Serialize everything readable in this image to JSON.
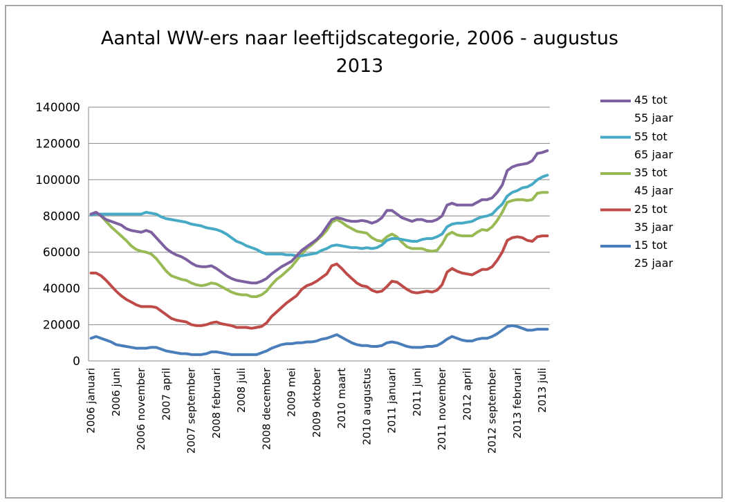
{
  "chart_data": {
    "type": "line",
    "title": "Aantal WW-ers naar leeftijdscategorie, 2006 - augustus 2013",
    "categories": [
      "2006 januari",
      null,
      null,
      null,
      null,
      "2006 juni",
      null,
      null,
      null,
      null,
      "2006 november",
      null,
      null,
      null,
      null,
      "2007 april",
      null,
      null,
      null,
      null,
      "2007 september",
      null,
      null,
      null,
      null,
      "2008 februari",
      null,
      null,
      null,
      null,
      "2008 juli",
      null,
      null,
      null,
      null,
      "2008 december",
      null,
      null,
      null,
      null,
      "2009 mei",
      null,
      null,
      null,
      null,
      "2009 oktober",
      null,
      null,
      null,
      null,
      "2010 maart",
      null,
      null,
      null,
      null,
      "2010 augustus",
      null,
      null,
      null,
      null,
      "2011 januari",
      null,
      null,
      null,
      null,
      "2011 juni",
      null,
      null,
      null,
      null,
      "2011 november",
      null,
      null,
      null,
      null,
      "2012 april",
      null,
      null,
      null,
      null,
      "2012 september",
      null,
      null,
      null,
      null,
      "2013 februari",
      null,
      null,
      null,
      null,
      "2013 juli",
      null
    ],
    "series": [
      {
        "name": "45 tot 55 jaar",
        "color": "#7d60a0",
        "values": [
          81000,
          82000,
          80000,
          78000,
          77000,
          76000,
          75000,
          73000,
          72000,
          71500,
          71000,
          72000,
          71000,
          68000,
          65000,
          62000,
          60000,
          58500,
          57500,
          56000,
          54000,
          52500,
          52000,
          52000,
          52500,
          51000,
          49000,
          47000,
          45500,
          44500,
          44000,
          43500,
          43000,
          43000,
          44000,
          45500,
          48000,
          50000,
          52000,
          53500,
          55000,
          58000,
          61000,
          63000,
          65000,
          67000,
          70000,
          74000,
          78000,
          79000,
          78500,
          77500,
          77000,
          77000,
          77500,
          77000,
          76000,
          77000,
          79000,
          83000,
          83000,
          81000,
          79000,
          78000,
          77000,
          78000,
          78000,
          77000,
          77000,
          78000,
          80000,
          86000,
          87000,
          86000,
          86000,
          86000,
          86000,
          87500,
          89000,
          89000,
          90000,
          93000,
          97000,
          105000,
          107000,
          108000,
          108500,
          109000,
          110500,
          114500,
          115000,
          116000
        ]
      },
      {
        "name": "55 tot 65 jaar",
        "color": "#46aac5",
        "values": [
          80500,
          81000,
          81000,
          81000,
          81000,
          81000,
          81000,
          81000,
          81000,
          81000,
          81000,
          82000,
          81500,
          81000,
          79500,
          78500,
          78000,
          77500,
          77000,
          76500,
          75500,
          75000,
          74500,
          73500,
          73000,
          72500,
          71500,
          70000,
          68000,
          66000,
          65000,
          63500,
          62500,
          61500,
          60000,
          59000,
          59000,
          59000,
          59000,
          58500,
          58500,
          58000,
          58000,
          58500,
          59000,
          59500,
          61000,
          62000,
          63500,
          64000,
          63500,
          63000,
          62500,
          62500,
          62000,
          62500,
          62000,
          62500,
          64000,
          66500,
          67500,
          67500,
          67000,
          66500,
          66000,
          66000,
          67000,
          67500,
          67500,
          68500,
          70000,
          74000,
          75500,
          76000,
          76000,
          76500,
          77000,
          78500,
          79500,
          80000,
          81000,
          84000,
          86500,
          91000,
          93000,
          94000,
          95500,
          96000,
          97500,
          100000,
          101500,
          102500
        ]
      },
      {
        "name": "35 tot 45 jaar",
        "color": "#98b954",
        "values": [
          81000,
          82000,
          80000,
          77000,
          74000,
          71500,
          69000,
          66500,
          63500,
          61500,
          60500,
          60000,
          59000,
          56500,
          53000,
          49500,
          47000,
          46000,
          45000,
          44500,
          43000,
          42000,
          41500,
          42000,
          43000,
          42500,
          41000,
          39500,
          38000,
          37000,
          36500,
          36500,
          35500,
          35500,
          36500,
          38500,
          42000,
          45000,
          47000,
          49500,
          52000,
          55500,
          59000,
          62000,
          64000,
          66500,
          69000,
          72000,
          76500,
          78000,
          76500,
          74500,
          73000,
          71500,
          71000,
          70500,
          68000,
          66500,
          66000,
          68500,
          70000,
          68500,
          65500,
          63000,
          62000,
          62000,
          62000,
          61000,
          60500,
          61000,
          64500,
          69500,
          71000,
          69500,
          69000,
          69000,
          69000,
          71000,
          72500,
          72000,
          74000,
          77500,
          82000,
          87500,
          88500,
          89000,
          89000,
          88500,
          89000,
          92500,
          93000,
          93000
        ]
      },
      {
        "name": "25 tot 35 jaar",
        "color": "#be4b48",
        "values": [
          48500,
          48500,
          47000,
          44500,
          41500,
          38500,
          36000,
          34000,
          32500,
          31000,
          30000,
          30000,
          30000,
          29500,
          27500,
          25500,
          23500,
          22500,
          22000,
          21500,
          20000,
          19500,
          19500,
          20000,
          21000,
          21500,
          20500,
          20000,
          19500,
          18500,
          18500,
          18500,
          18000,
          18500,
          19000,
          21000,
          24500,
          27000,
          29500,
          32000,
          34000,
          36000,
          39500,
          41500,
          42500,
          44000,
          46000,
          48000,
          52500,
          53500,
          51000,
          48000,
          45500,
          43000,
          41500,
          41000,
          39000,
          38000,
          38500,
          41000,
          44000,
          43500,
          41500,
          39500,
          38000,
          37500,
          38000,
          38500,
          38000,
          39000,
          42000,
          49000,
          51000,
          49500,
          48500,
          48000,
          47500,
          49000,
          50500,
          50500,
          52000,
          55500,
          60000,
          66500,
          68000,
          68500,
          68000,
          66500,
          66000,
          68500,
          69000,
          69000
        ]
      },
      {
        "name": "15 tot 25 jaar",
        "color": "#4a7ebb",
        "values": [
          12500,
          13500,
          12500,
          11500,
          10500,
          9000,
          8500,
          8000,
          7500,
          7000,
          7000,
          7000,
          7500,
          7500,
          6500,
          5500,
          5000,
          4500,
          4000,
          4000,
          3500,
          3500,
          3500,
          4000,
          5000,
          5000,
          4500,
          4000,
          3500,
          3500,
          3500,
          3500,
          3500,
          3500,
          4500,
          5500,
          7000,
          8000,
          9000,
          9500,
          9500,
          10000,
          10000,
          10500,
          10500,
          11000,
          12000,
          12500,
          13500,
          14500,
          13000,
          11500,
          10000,
          9000,
          8500,
          8500,
          8000,
          8000,
          8500,
          10000,
          10500,
          10000,
          9000,
          8000,
          7500,
          7500,
          7500,
          8000,
          8000,
          8500,
          10000,
          12000,
          13500,
          12500,
          11500,
          11000,
          11000,
          12000,
          12500,
          12500,
          13500,
          15000,
          17000,
          19000,
          19500,
          19000,
          18000,
          17000,
          17000,
          17500,
          17500,
          17500
        ]
      }
    ],
    "ylim": [
      0,
      140000
    ],
    "yticks": [
      0,
      20000,
      40000,
      60000,
      80000,
      100000,
      120000,
      140000
    ],
    "grid": true,
    "legend": "right"
  }
}
